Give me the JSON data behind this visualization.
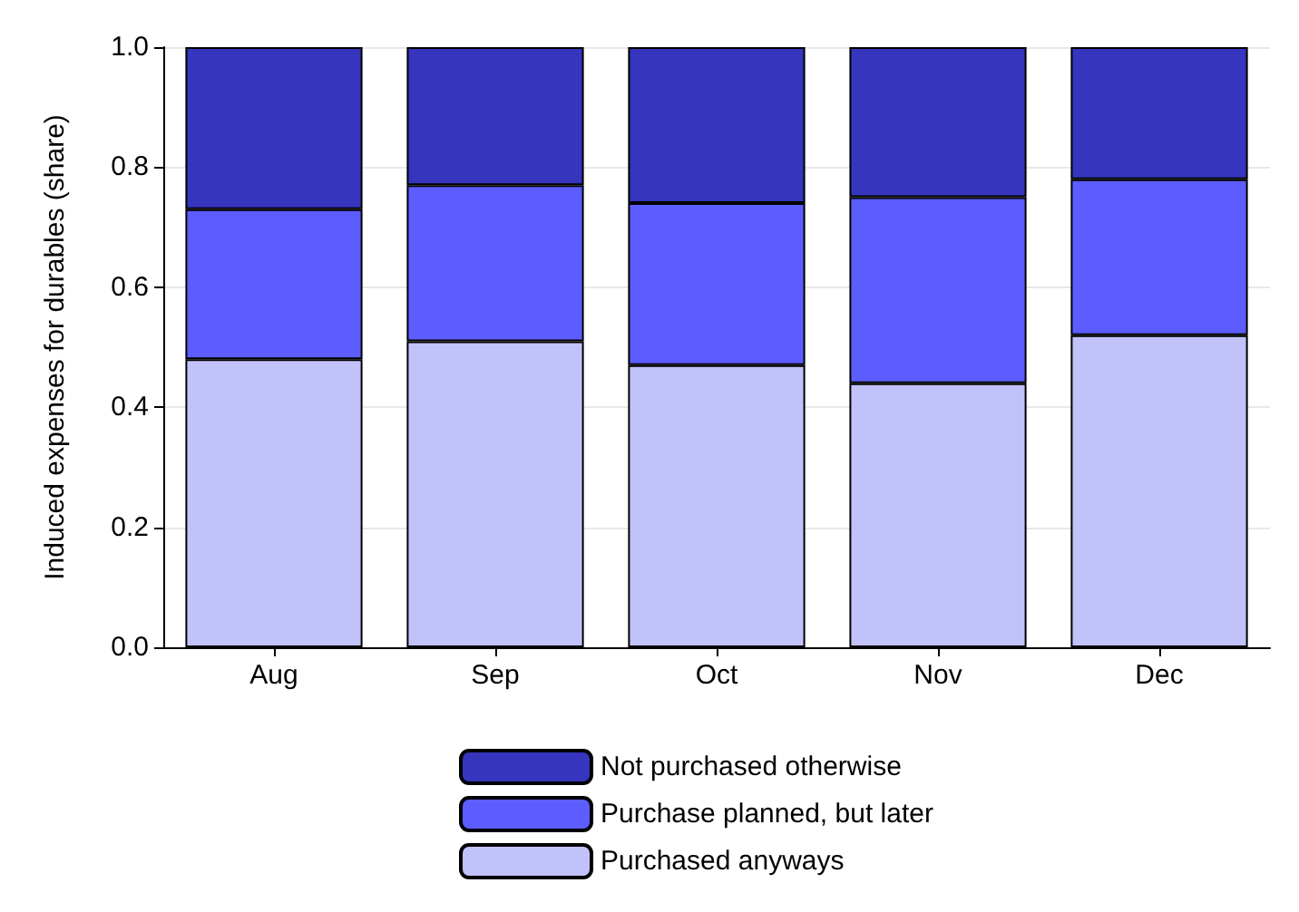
{
  "chart_data": {
    "type": "bar",
    "stacked": true,
    "ylabel": "Induced expenses for durables (share)",
    "categories": [
      "Aug",
      "Sep",
      "Oct",
      "Nov",
      "Dec"
    ],
    "series": [
      {
        "name": "Purchased anyways",
        "color": "#c2c2fb",
        "values": [
          0.48,
          0.51,
          0.47,
          0.44,
          0.52
        ]
      },
      {
        "name": "Purchase planned, but later",
        "color": "#5c5cff",
        "values": [
          0.25,
          0.26,
          0.27,
          0.31,
          0.26
        ]
      },
      {
        "name": "Not purchased otherwise",
        "color": "#3535bd",
        "values": [
          0.27,
          0.23,
          0.26,
          0.25,
          0.22
        ]
      }
    ],
    "ylim": [
      0,
      1
    ],
    "yticks": [
      {
        "value": 0,
        "label": "0.0"
      },
      {
        "value": 0.2,
        "label": "0.2"
      },
      {
        "value": 0.4,
        "label": "0.4"
      },
      {
        "value": 0.6,
        "label": "0.6"
      },
      {
        "value": 0.8,
        "label": "0.8"
      },
      {
        "value": 1,
        "label": "1.0"
      }
    ],
    "grid": "y",
    "legend": "bottom"
  }
}
